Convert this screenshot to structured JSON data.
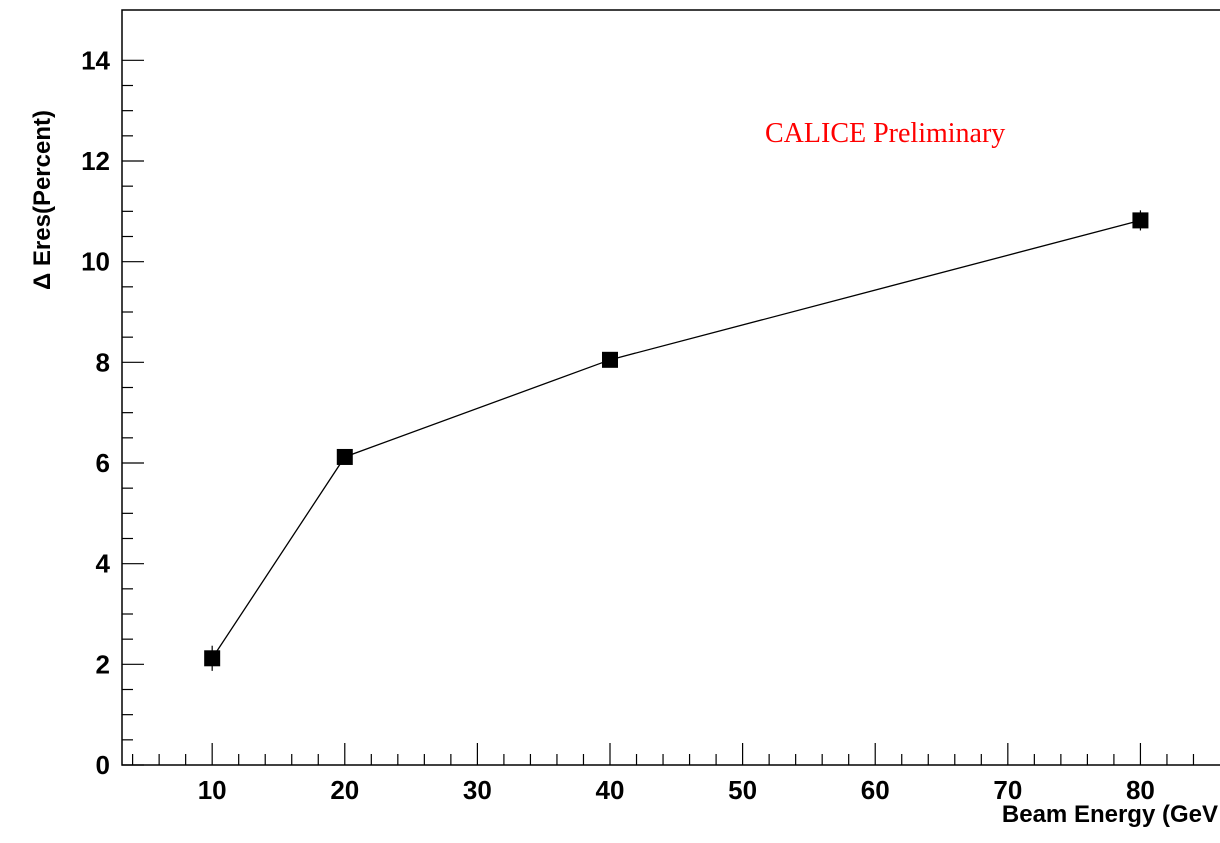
{
  "chart_data": {
    "type": "line",
    "x_label": "Beam Energy (GeV",
    "y_label": "Δ Eres(Percent)",
    "annotation": "CALICE Preliminary",
    "annotation_color": "#ff0000",
    "x": [
      10,
      20,
      40,
      80
    ],
    "series": [
      {
        "color": "#000000",
        "values": [
          2.12,
          6.12,
          8.05,
          10.82
        ],
        "errors": [
          0.25,
          0.12,
          0.08,
          0.2
        ]
      }
    ],
    "xlim": [
      3.2,
      86
    ],
    "ylim": [
      0,
      15
    ],
    "xticks": [
      10,
      20,
      30,
      40,
      50,
      60,
      70,
      80
    ],
    "yticks": [
      0,
      2,
      4,
      6,
      8,
      10,
      12,
      14
    ]
  }
}
